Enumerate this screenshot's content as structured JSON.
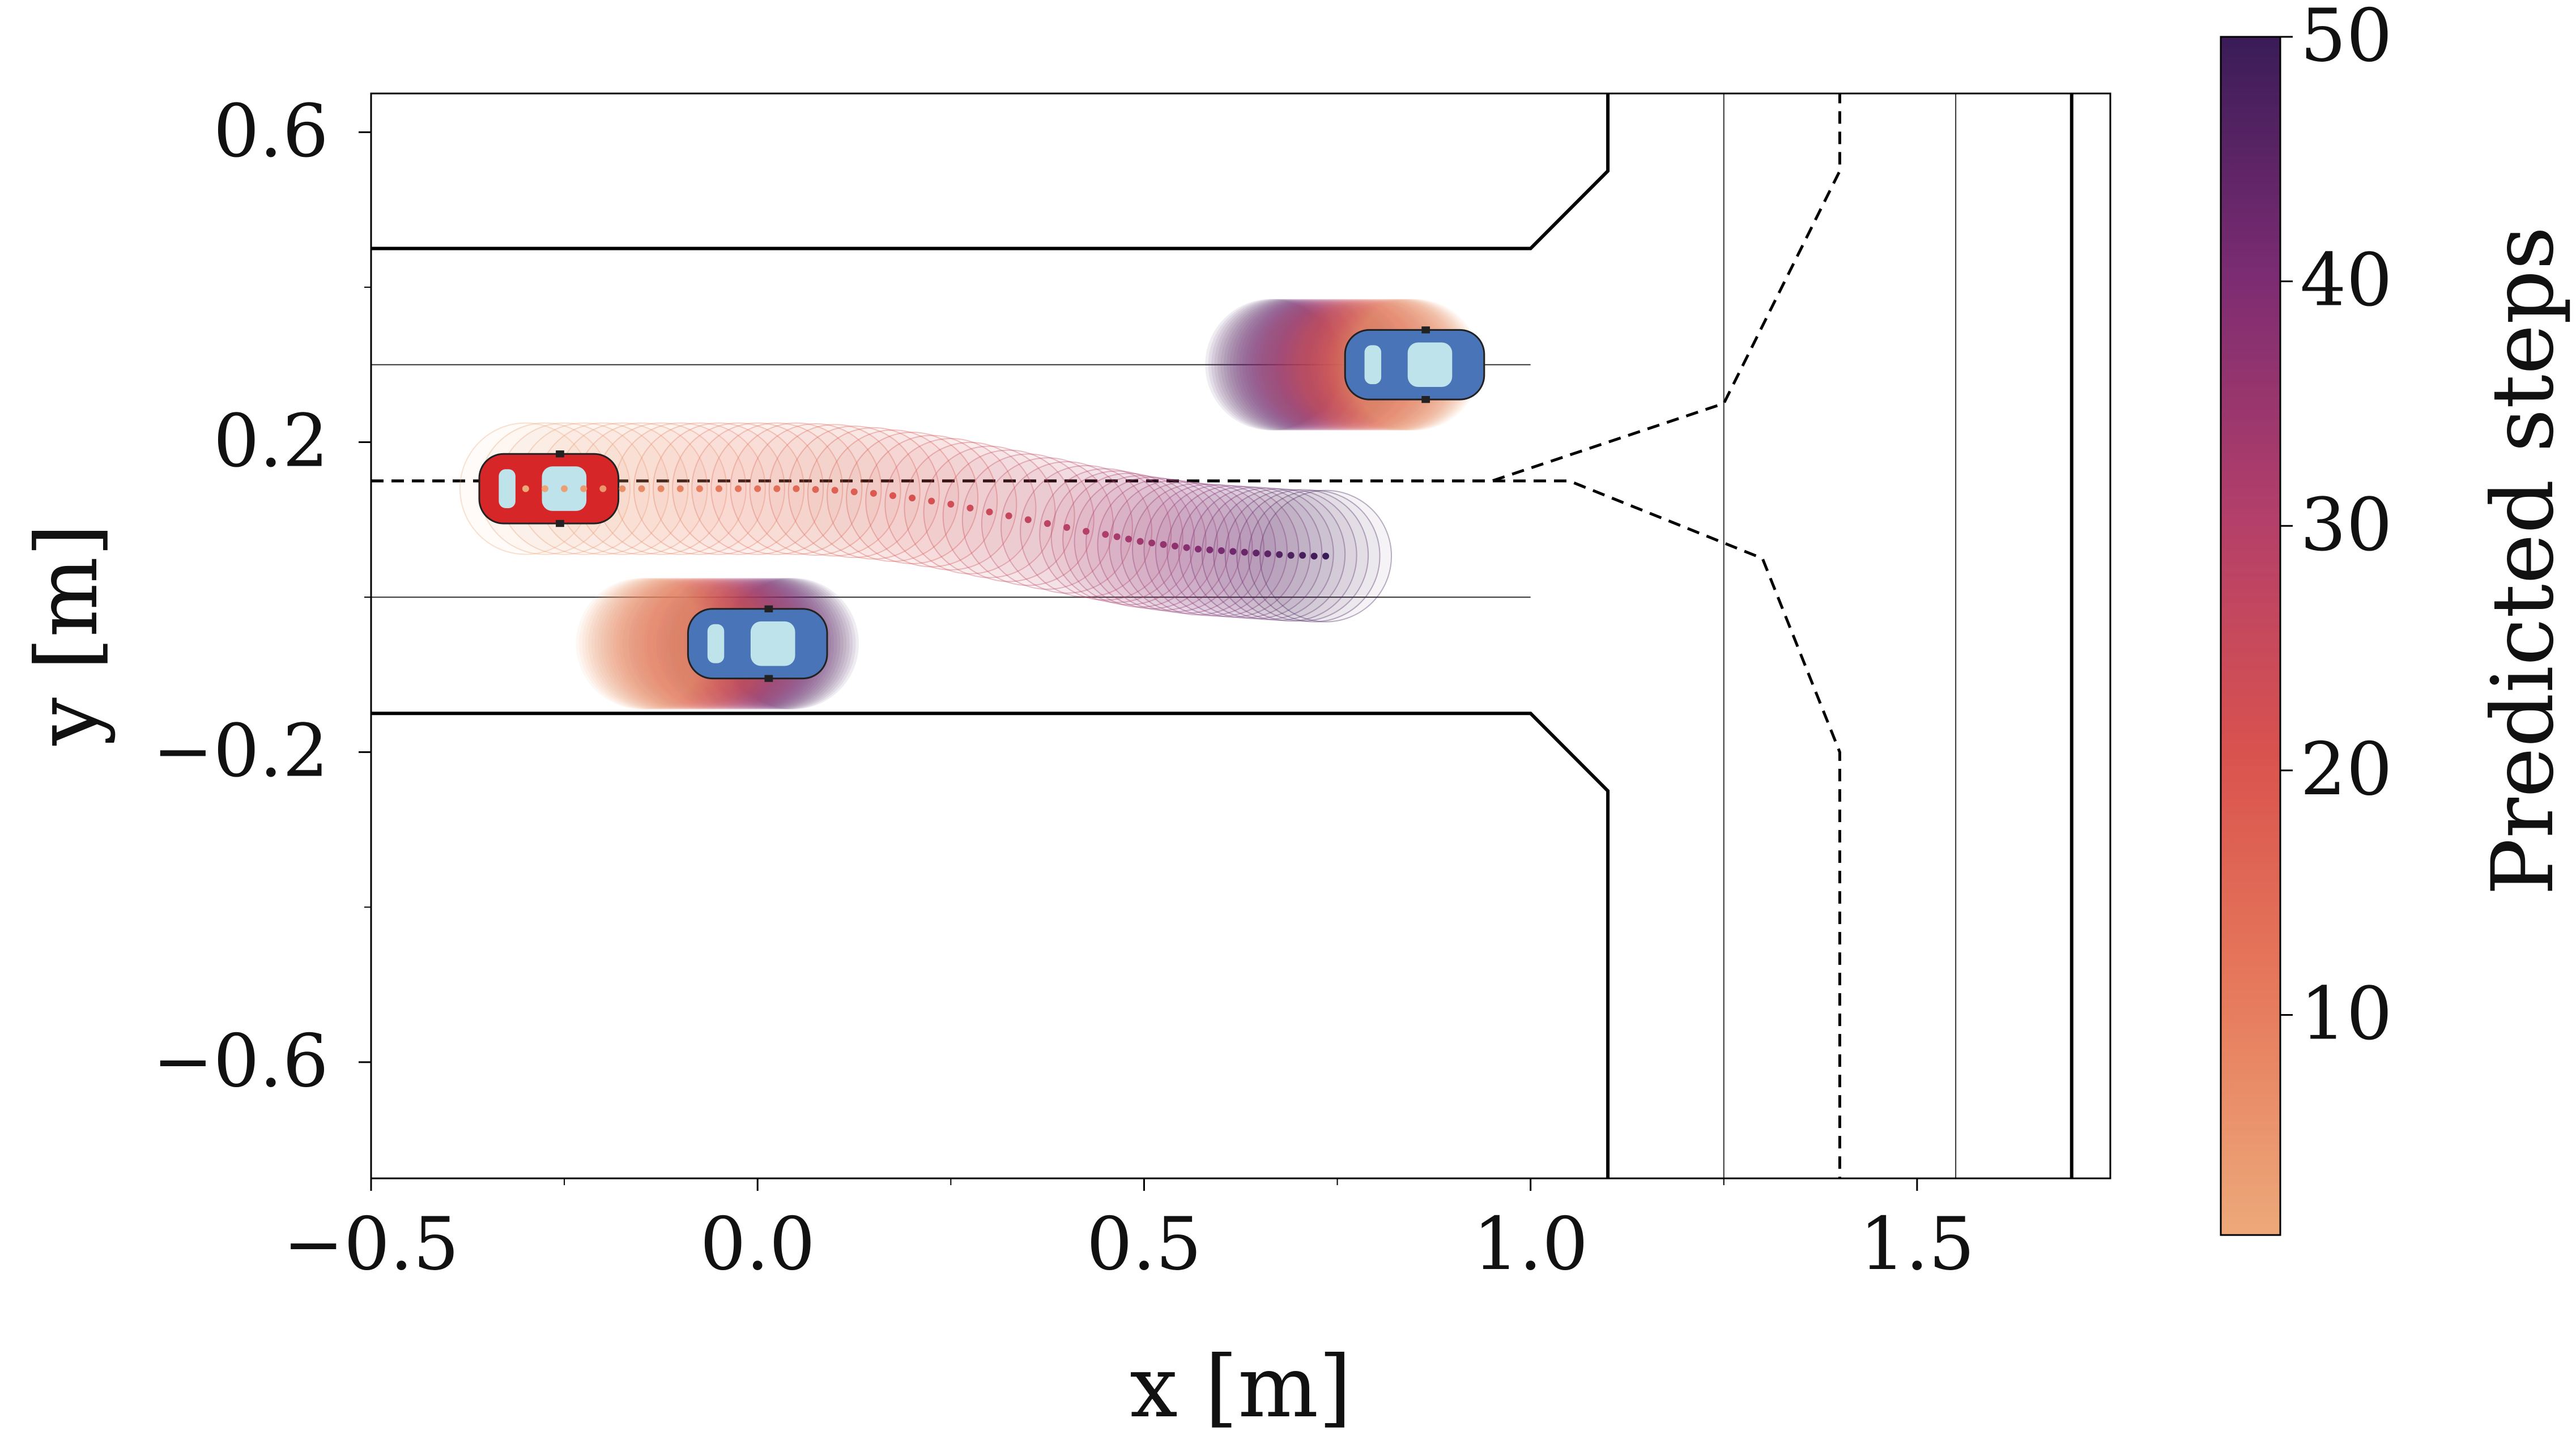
{
  "chart_data": {
    "type": "scatter",
    "xlabel": "x [m]",
    "ylabel": "y [m]",
    "xlim": [
      -0.5,
      1.75
    ],
    "ylim": [
      -0.75,
      0.65
    ],
    "xticks": [
      -0.5,
      0.0,
      0.5,
      1.0,
      1.5
    ],
    "xtick_labels": [
      "−0.5",
      "0.0",
      "0.5",
      "1.0",
      "1.5"
    ],
    "yticks": [
      0.6,
      0.2,
      -0.2,
      -0.6
    ],
    "ytick_labels": [
      "0.6",
      "0.2",
      "−0.2",
      "−0.6"
    ],
    "colorbar": {
      "label": "Predicted steps",
      "range": [
        1,
        50
      ],
      "ticks": [
        10,
        20,
        30,
        40,
        50
      ],
      "tick_labels": [
        "10",
        "20",
        "30",
        "40",
        "50"
      ],
      "colormap": "flare"
    },
    "road": {
      "boundaries": [
        {
          "kind": "solid-thick",
          "points": [
            [
              -0.5,
              0.45
            ],
            [
              1.0,
              0.45
            ],
            [
              1.1,
              0.55
            ],
            [
              1.1,
              0.65
            ]
          ]
        },
        {
          "kind": "solid-thick",
          "points": [
            [
              -0.5,
              -0.15
            ],
            [
              1.0,
              -0.15
            ],
            [
              1.1,
              -0.25
            ],
            [
              1.1,
              -0.75
            ]
          ]
        },
        {
          "kind": "solid-thick",
          "points": [
            [
              1.7,
              0.65
            ],
            [
              1.7,
              -0.75
            ]
          ]
        }
      ],
      "lane_lines": [
        {
          "points": [
            [
              -0.5,
              0.3
            ],
            [
              1.0,
              0.3
            ]
          ]
        },
        {
          "points": [
            [
              -0.5,
              0.0
            ],
            [
              1.0,
              0.0
            ]
          ]
        },
        {
          "points": [
            [
              1.25,
              0.65
            ],
            [
              1.25,
              -0.75
            ]
          ]
        },
        {
          "points": [
            [
              1.55,
              0.65
            ],
            [
              1.55,
              -0.75
            ]
          ]
        }
      ],
      "dashed_paths": [
        {
          "points": [
            [
              -0.5,
              0.15
            ],
            [
              0.95,
              0.15
            ],
            [
              1.25,
              0.25
            ],
            [
              1.4,
              0.55
            ],
            [
              1.4,
              0.65
            ]
          ]
        },
        {
          "points": [
            [
              -0.5,
              0.15
            ],
            [
              1.05,
              0.15
            ],
            [
              1.3,
              0.05
            ],
            [
              1.4,
              -0.2
            ],
            [
              1.4,
              -0.75
            ]
          ]
        }
      ]
    },
    "vehicles": [
      {
        "color": "#d62628",
        "role": "ego",
        "x": -0.27,
        "y": 0.14,
        "heading_deg": 0
      },
      {
        "color": "#4a74b8",
        "role": "other",
        "x": 0.0,
        "y": -0.06,
        "heading_deg": 0
      },
      {
        "color": "#4a74b8",
        "role": "other",
        "x": 0.85,
        "y": 0.3,
        "heading_deg": 0
      }
    ],
    "series": [
      {
        "role": "ego-predicted-trajectory",
        "steps": 50,
        "x": [
          -0.3,
          -0.275,
          -0.25,
          -0.225,
          -0.2,
          -0.175,
          -0.15,
          -0.125,
          -0.1,
          -0.075,
          -0.05,
          -0.025,
          0.0,
          0.025,
          0.05,
          0.075,
          0.1,
          0.125,
          0.15,
          0.175,
          0.2,
          0.225,
          0.25,
          0.275,
          0.3,
          0.325,
          0.35,
          0.375,
          0.4,
          0.425,
          0.45,
          0.465,
          0.48,
          0.495,
          0.51,
          0.525,
          0.54,
          0.555,
          0.57,
          0.585,
          0.6,
          0.615,
          0.63,
          0.645,
          0.66,
          0.675,
          0.69,
          0.705,
          0.72,
          0.735
        ],
        "y": [
          0.14,
          0.14,
          0.14,
          0.14,
          0.14,
          0.14,
          0.14,
          0.14,
          0.14,
          0.14,
          0.14,
          0.14,
          0.14,
          0.14,
          0.14,
          0.139,
          0.138,
          0.136,
          0.134,
          0.131,
          0.128,
          0.124,
          0.12,
          0.115,
          0.11,
          0.105,
          0.1,
          0.095,
          0.09,
          0.085,
          0.081,
          0.078,
          0.075,
          0.072,
          0.07,
          0.068,
          0.066,
          0.064,
          0.062,
          0.061,
          0.06,
          0.059,
          0.058,
          0.057,
          0.056,
          0.055,
          0.054,
          0.054,
          0.053,
          0.053
        ]
      },
      {
        "role": "obstacle-predicted-trajectory",
        "steps": 50,
        "x": [
          -0.15,
          -0.146,
          -0.142,
          -0.138,
          -0.134,
          -0.13,
          -0.126,
          -0.122,
          -0.118,
          -0.114,
          -0.11,
          -0.106,
          -0.102,
          -0.098,
          -0.094,
          -0.09,
          -0.086,
          -0.082,
          -0.078,
          -0.074,
          -0.07,
          -0.066,
          -0.062,
          -0.058,
          -0.054,
          -0.05,
          -0.046,
          -0.042,
          -0.038,
          -0.034,
          -0.03,
          -0.026,
          -0.022,
          -0.018,
          -0.014,
          -0.01,
          -0.006,
          -0.002,
          0.002,
          0.006,
          0.01,
          0.014,
          0.018,
          0.022,
          0.026,
          0.03,
          0.034,
          0.038,
          0.042,
          0.046
        ],
        "y": [
          -0.06,
          -0.06,
          -0.06,
          -0.06,
          -0.06,
          -0.06,
          -0.06,
          -0.06,
          -0.06,
          -0.06,
          -0.06,
          -0.06,
          -0.06,
          -0.06,
          -0.06,
          -0.06,
          -0.06,
          -0.06,
          -0.06,
          -0.06,
          -0.06,
          -0.06,
          -0.06,
          -0.06,
          -0.06,
          -0.06,
          -0.06,
          -0.06,
          -0.06,
          -0.06,
          -0.06,
          -0.06,
          -0.06,
          -0.06,
          -0.06,
          -0.06,
          -0.06,
          -0.06,
          -0.06,
          -0.06,
          -0.06,
          -0.06,
          -0.06,
          -0.06,
          -0.06,
          -0.06,
          -0.06,
          -0.06,
          -0.06,
          -0.06
        ]
      },
      {
        "role": "obstacle-predicted-trajectory",
        "steps": 50,
        "x": [
          0.85,
          0.847,
          0.844,
          0.841,
          0.838,
          0.835,
          0.832,
          0.829,
          0.826,
          0.823,
          0.82,
          0.816,
          0.812,
          0.808,
          0.804,
          0.8,
          0.796,
          0.792,
          0.788,
          0.784,
          0.78,
          0.776,
          0.772,
          0.768,
          0.764,
          0.76,
          0.756,
          0.752,
          0.748,
          0.744,
          0.74,
          0.736,
          0.732,
          0.728,
          0.724,
          0.72,
          0.716,
          0.712,
          0.708,
          0.704,
          0.7,
          0.696,
          0.692,
          0.688,
          0.684,
          0.68,
          0.676,
          0.672,
          0.668,
          0.664
        ],
        "y": [
          0.3,
          0.3,
          0.3,
          0.3,
          0.3,
          0.3,
          0.3,
          0.3,
          0.3,
          0.3,
          0.3,
          0.3,
          0.3,
          0.3,
          0.3,
          0.3,
          0.3,
          0.3,
          0.3,
          0.3,
          0.3,
          0.3,
          0.3,
          0.3,
          0.3,
          0.3,
          0.3,
          0.3,
          0.3,
          0.3,
          0.3,
          0.3,
          0.3,
          0.3,
          0.3,
          0.3,
          0.3,
          0.3,
          0.3,
          0.3,
          0.3,
          0.3,
          0.3,
          0.3,
          0.3,
          0.3,
          0.3,
          0.3,
          0.3,
          0.3
        ]
      }
    ]
  }
}
